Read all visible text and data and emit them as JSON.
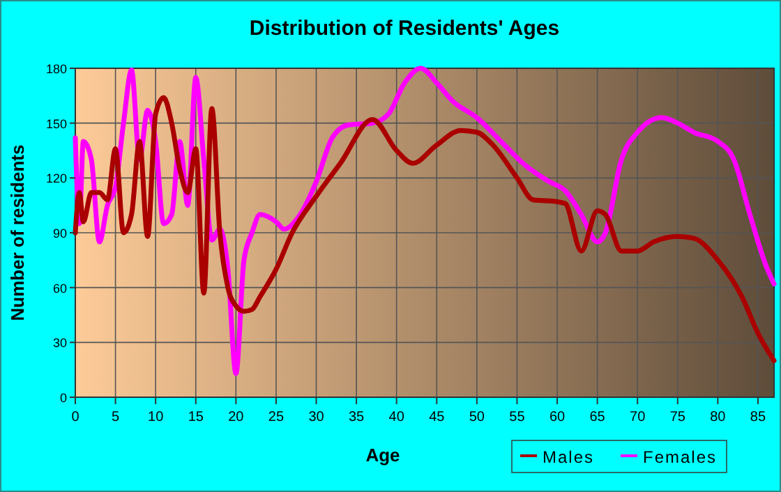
{
  "chart_data": {
    "type": "line",
    "title": "Distribution of Residents' Ages",
    "xlabel": "Age",
    "ylabel": "Number of residents",
    "xlim": [
      0,
      87
    ],
    "xticks": [
      0,
      5,
      10,
      15,
      20,
      25,
      30,
      35,
      40,
      45,
      50,
      55,
      60,
      65,
      70,
      75,
      80,
      85
    ],
    "ylim": [
      0,
      180
    ],
    "yticks": [
      0,
      30,
      60,
      90,
      120,
      150,
      180
    ],
    "grid": true,
    "legend": "bottom right",
    "line_style": "solid",
    "series": [
      {
        "name": "Males",
        "color": "#aa0000",
        "x": [
          0,
          0.5,
          1,
          2,
          3,
          4,
          5,
          6,
          7,
          8,
          9,
          10,
          11,
          12,
          13,
          14,
          15,
          16,
          17,
          18,
          19,
          20,
          21,
          22,
          23,
          25,
          27,
          30,
          33,
          37,
          40,
          42,
          45,
          48,
          50,
          52,
          55,
          57,
          60,
          61,
          63,
          65,
          66,
          68,
          70,
          72,
          75,
          77,
          80,
          83,
          85,
          87
        ],
        "values": [
          90,
          112,
          96,
          112,
          112,
          108,
          136,
          90,
          100,
          140,
          88,
          155,
          164,
          150,
          125,
          112,
          136,
          57,
          158,
          90,
          60,
          50,
          47,
          48,
          55,
          70,
          90,
          110,
          128,
          152,
          135,
          128,
          138,
          146,
          145,
          138,
          120,
          108,
          107,
          106,
          80,
          102,
          100,
          80,
          80,
          85,
          88,
          87,
          75,
          55,
          35,
          20
        ]
      },
      {
        "name": "Females",
        "color": "#ff00ff",
        "x": [
          0,
          0.5,
          1,
          2,
          3,
          4,
          5,
          6,
          7,
          8,
          9,
          10,
          11,
          12,
          13,
          14,
          15,
          16,
          17,
          18,
          19,
          20,
          21,
          22,
          23,
          25,
          26,
          28,
          30,
          32,
          34,
          37,
          39,
          41,
          43,
          45,
          47,
          50,
          53,
          56,
          59,
          61,
          63,
          65,
          66,
          68,
          70,
          73,
          75,
          77,
          80,
          82,
          84,
          86,
          87
        ],
        "values": [
          142,
          95,
          140,
          130,
          85,
          105,
          115,
          150,
          179,
          130,
          157,
          140,
          95,
          100,
          140,
          105,
          175,
          130,
          86,
          92,
          70,
          13,
          75,
          90,
          100,
          96,
          92,
          100,
          118,
          142,
          149,
          150,
          155,
          172,
          180,
          172,
          162,
          153,
          140,
          127,
          118,
          113,
          100,
          85,
          90,
          130,
          145,
          153,
          150,
          145,
          140,
          130,
          100,
          72,
          62
        ]
      }
    ]
  }
}
